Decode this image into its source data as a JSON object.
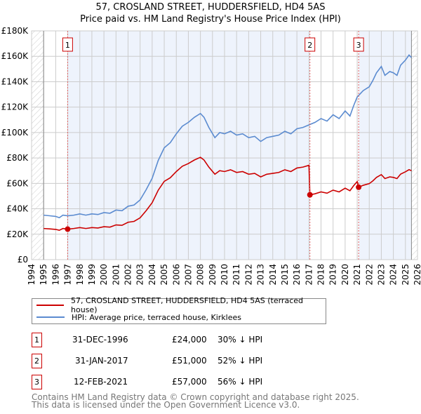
{
  "chart_data": {
    "type": "line",
    "title": "57, CROSLAND STREET, HUDDERSFIELD, HD4 5AS",
    "subtitle": "Price paid vs. HM Land Registry's House Price Index (HPI)",
    "xlim": [
      1994,
      2026
    ],
    "ylim": [
      0,
      180000
    ],
    "y_ticks": [
      0,
      20000,
      40000,
      60000,
      80000,
      100000,
      120000,
      140000,
      160000,
      180000
    ],
    "y_tick_labels": [
      "£0",
      "£20K",
      "£40K",
      "£60K",
      "£80K",
      "£100K",
      "£120K",
      "£140K",
      "£160K",
      "£180K"
    ],
    "x_ticks": [
      "1994",
      "1995",
      "1996",
      "1997",
      "1998",
      "1999",
      "2000",
      "2001",
      "2002",
      "2003",
      "2004",
      "2005",
      "2006",
      "2007",
      "2008",
      "2009",
      "2010",
      "2011",
      "2012",
      "2013",
      "2014",
      "2015",
      "2016",
      "2017",
      "2018",
      "2019",
      "2020",
      "2021",
      "2022",
      "2023",
      "2024",
      "2025",
      "2026"
    ],
    "grid": true,
    "series": [
      {
        "name": "57, CROSLAND STREET, HUDDERSFIELD, HD4 5AS (terraced house)",
        "color": "#cc0000",
        "points": [
          [
            1995,
            24.5
          ],
          [
            1995.5,
            24.2
          ],
          [
            1996,
            23.8
          ],
          [
            1996.3,
            23.1
          ],
          [
            1996.6,
            24.5
          ],
          [
            1996.99,
            24
          ],
          [
            1997.5,
            24.5
          ],
          [
            1998,
            25.2
          ],
          [
            1998.5,
            24.5
          ],
          [
            1999,
            25.2
          ],
          [
            1999.5,
            24.9
          ],
          [
            2000,
            25.9
          ],
          [
            2000.5,
            25.6
          ],
          [
            2001,
            27.3
          ],
          [
            2001.5,
            27
          ],
          [
            2002,
            29.4
          ],
          [
            2002.5,
            30.1
          ],
          [
            2003,
            32.9
          ],
          [
            2003.5,
            38.5
          ],
          [
            2004,
            44.8
          ],
          [
            2004.5,
            54.6
          ],
          [
            2005,
            61.6
          ],
          [
            2005.5,
            64.4
          ],
          [
            2006,
            69.3
          ],
          [
            2006.5,
            73.5
          ],
          [
            2007,
            75.6
          ],
          [
            2007.5,
            78.4
          ],
          [
            2008,
            80.5
          ],
          [
            2008.3,
            78.4
          ],
          [
            2008.7,
            72.8
          ],
          [
            2009.2,
            67.2
          ],
          [
            2009.6,
            70
          ],
          [
            2010,
            69.3
          ],
          [
            2010.5,
            70.7
          ],
          [
            2011,
            68.6
          ],
          [
            2011.5,
            69.3
          ],
          [
            2012,
            67.2
          ],
          [
            2012.5,
            67.9
          ],
          [
            2013,
            65.1
          ],
          [
            2013.5,
            67.2
          ],
          [
            2014,
            67.9
          ],
          [
            2014.5,
            68.6
          ],
          [
            2015,
            70.7
          ],
          [
            2015.5,
            69.3
          ],
          [
            2016,
            72.1
          ],
          [
            2016.5,
            72.8
          ],
          [
            2017,
            74.2
          ],
          [
            2017.08,
            51
          ],
          [
            2017.5,
            51.8
          ],
          [
            2018,
            53.3
          ],
          [
            2018.5,
            52.3
          ],
          [
            2019,
            54.7
          ],
          [
            2019.5,
            53.3
          ],
          [
            2020,
            56.2
          ],
          [
            2020.4,
            54.2
          ],
          [
            2020.7,
            58.1
          ],
          [
            2021,
            61.4
          ],
          [
            2021.12,
            57
          ],
          [
            2021.5,
            58.5
          ],
          [
            2022,
            59.8
          ],
          [
            2022.3,
            62
          ],
          [
            2022.6,
            64.7
          ],
          [
            2023,
            66.9
          ],
          [
            2023.3,
            63.8
          ],
          [
            2023.7,
            65.1
          ],
          [
            2024,
            64.7
          ],
          [
            2024.3,
            63.8
          ],
          [
            2024.6,
            67.3
          ],
          [
            2025,
            69.1
          ],
          [
            2025.3,
            70.8
          ],
          [
            2025.5,
            70
          ]
        ]
      },
      {
        "name": "HPI: Average price, terraced house, Kirklees",
        "color": "#5b8bd0",
        "points": [
          [
            1995,
            35
          ],
          [
            1995.5,
            34.5
          ],
          [
            1996,
            34
          ],
          [
            1996.3,
            33
          ],
          [
            1996.6,
            35
          ],
          [
            1997,
            34.5
          ],
          [
            1997.5,
            35
          ],
          [
            1998,
            36
          ],
          [
            1998.5,
            35
          ],
          [
            1999,
            36
          ],
          [
            1999.5,
            35.5
          ],
          [
            2000,
            37
          ],
          [
            2000.5,
            36.5
          ],
          [
            2001,
            39
          ],
          [
            2001.5,
            38.5
          ],
          [
            2002,
            42
          ],
          [
            2002.5,
            43
          ],
          [
            2003,
            47
          ],
          [
            2003.5,
            55
          ],
          [
            2004,
            64
          ],
          [
            2004.5,
            78
          ],
          [
            2005,
            88
          ],
          [
            2005.5,
            92
          ],
          [
            2006,
            99
          ],
          [
            2006.5,
            105
          ],
          [
            2007,
            108
          ],
          [
            2007.5,
            112
          ],
          [
            2008,
            115
          ],
          [
            2008.3,
            112
          ],
          [
            2008.7,
            104
          ],
          [
            2009.2,
            96
          ],
          [
            2009.6,
            100
          ],
          [
            2010,
            99
          ],
          [
            2010.5,
            101
          ],
          [
            2011,
            98
          ],
          [
            2011.5,
            99
          ],
          [
            2012,
            96
          ],
          [
            2012.5,
            97
          ],
          [
            2013,
            93
          ],
          [
            2013.5,
            96
          ],
          [
            2014,
            97
          ],
          [
            2014.5,
            98
          ],
          [
            2015,
            101
          ],
          [
            2015.5,
            99
          ],
          [
            2016,
            103
          ],
          [
            2016.5,
            104
          ],
          [
            2017,
            106
          ],
          [
            2017.5,
            108
          ],
          [
            2018,
            111
          ],
          [
            2018.5,
            109
          ],
          [
            2019,
            114
          ],
          [
            2019.5,
            111
          ],
          [
            2020,
            117
          ],
          [
            2020.4,
            113
          ],
          [
            2020.7,
            121
          ],
          [
            2021,
            128
          ],
          [
            2021.5,
            133
          ],
          [
            2022,
            136
          ],
          [
            2022.3,
            141
          ],
          [
            2022.6,
            147
          ],
          [
            2023,
            152
          ],
          [
            2023.3,
            145
          ],
          [
            2023.7,
            148
          ],
          [
            2024,
            147
          ],
          [
            2024.3,
            145
          ],
          [
            2024.6,
            153
          ],
          [
            2025,
            157
          ],
          [
            2025.3,
            161
          ],
          [
            2025.5,
            159
          ]
        ]
      }
    ],
    "sales": [
      {
        "label": "1",
        "x": 1996.99,
        "y": 24000,
        "date": "31-DEC-1996",
        "price": "£24,000",
        "hpi": "30% ↓ HPI"
      },
      {
        "label": "2",
        "x": 2017.08,
        "y": 51000,
        "date": "31-JAN-2017",
        "price": "£51,000",
        "hpi": "52% ↓ HPI"
      },
      {
        "label": "3",
        "x": 2021.12,
        "y": 57000,
        "date": "12-FEB-2021",
        "price": "£57,000",
        "hpi": "56% ↓ HPI"
      }
    ],
    "data_range": [
      1995,
      2025.5
    ],
    "legend_placement": "below"
  },
  "footer": [
    "Contains HM Land Registry data © Crown copyright and database right 2025.",
    "This data is licensed under the Open Government Licence v3.0."
  ]
}
